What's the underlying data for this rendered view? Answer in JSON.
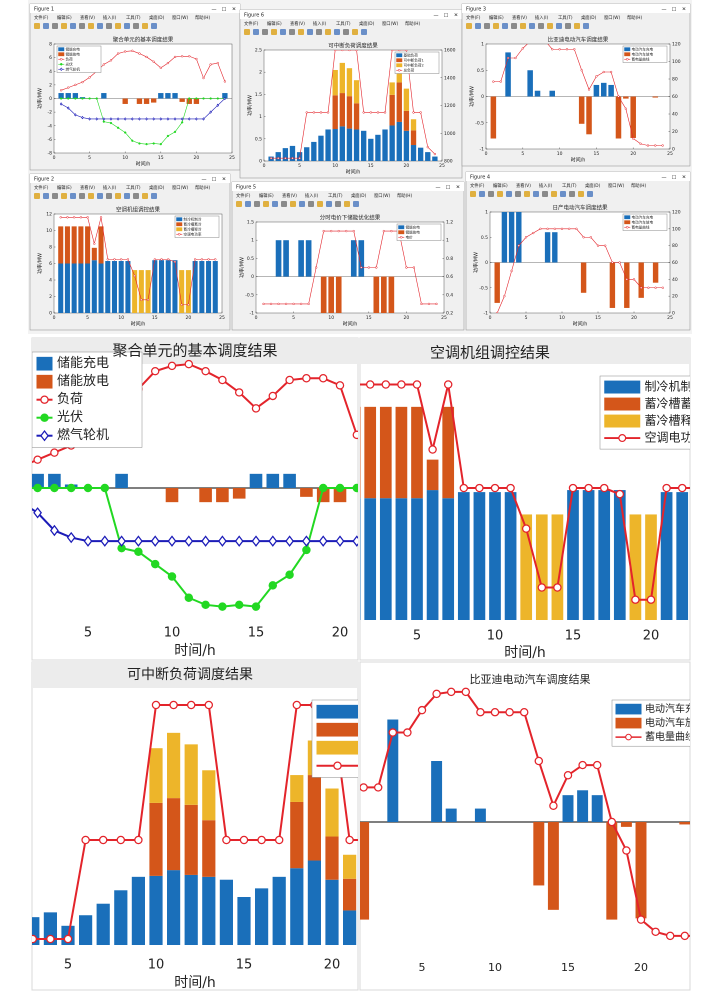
{
  "windows": [
    {
      "title": "Figure 1"
    },
    {
      "title": "Figure 6"
    },
    {
      "title": "Figure 3"
    },
    {
      "title": "Figure 2"
    },
    {
      "title": "Figure 5"
    },
    {
      "title": "Figure 4"
    }
  ],
  "menu": [
    "文件(F)",
    "编辑(E)",
    "查看(V)",
    "插入(I)",
    "工具(T)",
    "桌面(D)",
    "窗口(W)",
    "帮助(H)"
  ],
  "chart_data": [
    {
      "type": "combo",
      "title": "聚合单元的基本调度结果",
      "xlabel": "时间/h",
      "ylabel": "功率/MW",
      "legend": "upper left",
      "x": [
        1,
        2,
        3,
        4,
        5,
        6,
        7,
        8,
        9,
        10,
        11,
        12,
        13,
        14,
        15,
        16,
        17,
        18,
        19,
        20,
        21,
        22,
        23,
        24
      ],
      "xlim": [
        0,
        25
      ],
      "xticks": [
        0,
        5,
        10,
        15,
        20,
        25
      ],
      "ylim": [
        -8,
        8
      ],
      "yticks": [
        -8,
        -6,
        -4,
        -2,
        0,
        2,
        4,
        6,
        8
      ],
      "series": [
        {
          "name": "储能充电",
          "type": "bar",
          "color": "#1a6fba",
          "values": [
            0.8,
            0.8,
            0.8,
            0.2,
            0,
            0,
            0.8,
            0,
            0,
            0,
            0,
            0,
            0,
            0,
            0.8,
            0.8,
            0.8,
            0,
            0,
            0,
            0,
            0,
            0,
            0.8
          ]
        },
        {
          "name": "储能放电",
          "type": "bar",
          "color": "#d4561a",
          "values": [
            0,
            0,
            0,
            0,
            0,
            0,
            0,
            0,
            0,
            -0.8,
            0,
            -0.8,
            -0.8,
            -0.6,
            0,
            0,
            0,
            -0.5,
            -0.8,
            -0.8,
            0,
            0,
            0,
            0
          ]
        },
        {
          "name": "负荷",
          "type": "line",
          "marker": "circle",
          "color": "#e3242b",
          "values": [
            1.2,
            1.6,
            2.0,
            2.4,
            3.1,
            4.0,
            5.0,
            5.6,
            6.6,
            6.9,
            7.0,
            6.6,
            6.1,
            5.4,
            4.5,
            5.2,
            6.1,
            6.2,
            6.2,
            5.8,
            3.0,
            5.0,
            5.2,
            2.5
          ]
        },
        {
          "name": "光伏",
          "type": "line",
          "marker": "dot",
          "color": "#22d822",
          "values": [
            0,
            0,
            0,
            0,
            0,
            0,
            -3.4,
            -3.6,
            -4.3,
            -5.0,
            -6.2,
            -6.6,
            -6.7,
            -6.6,
            -6.7,
            -5.5,
            -4.9,
            -3.5,
            0,
            0,
            0,
            0,
            0,
            0
          ]
        },
        {
          "name": "燃气轮机",
          "type": "line",
          "marker": "diamond",
          "color": "#1c1cb8",
          "values": [
            -0.8,
            -1.4,
            -2.4,
            -2.8,
            -3,
            -3,
            -3,
            -3,
            -3,
            -3,
            -3,
            -3,
            -3,
            -3,
            -3,
            -3,
            -3,
            -3,
            -3,
            -3,
            -3,
            -2,
            -1,
            0
          ]
        }
      ]
    },
    {
      "type": "combo",
      "title": "可中断负荷调度结果",
      "xlabel": "时间/h",
      "ylabel": "功率/MW",
      "legend": "upper right",
      "x": [
        1,
        2,
        3,
        4,
        5,
        6,
        7,
        8,
        9,
        10,
        11,
        12,
        13,
        14,
        15,
        16,
        17,
        18,
        19,
        20,
        21,
        22,
        23,
        24
      ],
      "xlim": [
        0,
        25
      ],
      "xticks": [
        0,
        5,
        10,
        15,
        20,
        25
      ],
      "ylim": [
        0,
        2.5
      ],
      "yticks": [
        0,
        0.5,
        1,
        1.5,
        2,
        2.5
      ],
      "y2lim": [
        800,
        1600
      ],
      "y2ticks": [
        800,
        1000,
        1200,
        1400,
        1600
      ],
      "series": [
        {
          "name": "基础负荷",
          "type": "bar",
          "color": "#1a6fba",
          "values": [
            0.1,
            0.2,
            0.29,
            0.34,
            0.2,
            0.31,
            0.43,
            0.57,
            0.71,
            0.72,
            0.78,
            0.73,
            0.71,
            0.68,
            0.5,
            0.59,
            0.71,
            0.8,
            0.88,
            0.68,
            0.36,
            0.3,
            0.2,
            0.1
          ]
        },
        {
          "name": "可中断负荷1",
          "type": "bar",
          "color": "#d4561a",
          "values": [
            0,
            0,
            0,
            0,
            0,
            0,
            0,
            0,
            0,
            0.76,
            0.75,
            0.73,
            0.59,
            0,
            0,
            0,
            0,
            0.69,
            0.89,
            0.45,
            0.33,
            0,
            0,
            0
          ]
        },
        {
          "name": "可中断负荷2",
          "type": "bar",
          "color": "#edb52a",
          "values": [
            0,
            0,
            0,
            0,
            0,
            0,
            0,
            0,
            0,
            0.57,
            0.68,
            0.63,
            0.52,
            0,
            0,
            0,
            0,
            0.28,
            0.36,
            0.5,
            0.25,
            0,
            0,
            0
          ]
        },
        {
          "name": "总负荷",
          "type": "line",
          "marker": "circle",
          "axis": "y2",
          "color": "#e3242b",
          "values": [
            820,
            820,
            820,
            820,
            820,
            1150,
            1150,
            1150,
            1150,
            1600,
            1600,
            1600,
            1600,
            1150,
            1150,
            1150,
            1150,
            1600,
            1600,
            1600,
            1150,
            1150,
            900,
            850
          ]
        }
      ]
    },
    {
      "type": "combo",
      "title": "比亚迪电动汽车调度结果",
      "xlabel": "时间/h",
      "ylabel": "功率/MW",
      "legend": "upper right",
      "x": [
        1,
        2,
        3,
        4,
        5,
        6,
        7,
        8,
        9,
        10,
        11,
        12,
        13,
        14,
        15,
        16,
        17,
        18,
        19,
        20,
        21,
        22,
        23,
        24
      ],
      "xlim": [
        0,
        25
      ],
      "xticks": [
        0,
        5,
        10,
        15,
        20,
        25
      ],
      "ylim": [
        -1,
        1
      ],
      "yticks": [
        -1,
        -0.5,
        0,
        0.5,
        1
      ],
      "y2lim": [
        0,
        120
      ],
      "y2ticks": [
        0,
        20,
        40,
        60,
        80,
        100,
        120
      ],
      "series": [
        {
          "name": "电动汽车充电",
          "type": "bar",
          "color": "#1a6fba",
          "values": [
            0,
            0,
            0.84,
            0,
            0,
            0.5,
            0.11,
            0,
            0.11,
            0,
            0,
            0,
            0,
            0,
            0.22,
            0.26,
            0.22,
            0,
            0,
            0,
            0,
            0,
            0,
            0
          ]
        },
        {
          "name": "电动汽车放电",
          "type": "bar",
          "color": "#d4561a",
          "values": [
            -0.8,
            0,
            0,
            0,
            0,
            0,
            0,
            0,
            0,
            0,
            0,
            0,
            -0.52,
            -0.72,
            0,
            0,
            0,
            -0.8,
            -0.04,
            -0.79,
            0,
            0,
            -0.02,
            0
          ]
        },
        {
          "name": "蓄电量曲线",
          "type": "line",
          "marker": "circle",
          "axis": "y2",
          "color": "#e3242b",
          "values": [
            77,
            77,
            104,
            104,
            115,
            123,
            124,
            124,
            114,
            114,
            114,
            114,
            90,
            68,
            83,
            88,
            88,
            60,
            46,
            12,
            6,
            4,
            4,
            4
          ]
        }
      ]
    },
    {
      "type": "combo",
      "title": "空调机组调控结果",
      "xlabel": "时间/h",
      "ylabel": "功率/MW",
      "legend": "upper right",
      "x": [
        1,
        2,
        3,
        4,
        5,
        6,
        7,
        8,
        9,
        10,
        11,
        12,
        13,
        14,
        15,
        16,
        17,
        18,
        19,
        20,
        21,
        22,
        23,
        24
      ],
      "xlim": [
        0,
        25
      ],
      "xticks": [
        0,
        5,
        10,
        15,
        20,
        25
      ],
      "ylim": [
        0,
        12
      ],
      "yticks": [
        0,
        2,
        4,
        6,
        8,
        10,
        12
      ],
      "series": [
        {
          "name": "制冷机制冷",
          "type": "bar",
          "color": "#1a6fba",
          "values": [
            6,
            6,
            6,
            6,
            6,
            6.4,
            6,
            6.3,
            6.3,
            6.3,
            6.3,
            0,
            0,
            0,
            6.4,
            6.4,
            6.4,
            6.4,
            0,
            0,
            6.3,
            6.3,
            6.3,
            6.3
          ]
        },
        {
          "name": "蓄冷槽蓄冷",
          "type": "bar",
          "color": "#d4561a",
          "values": [
            4.5,
            4.5,
            4.5,
            4.5,
            4.5,
            1.5,
            4.5,
            0,
            0,
            0,
            0,
            0,
            0,
            0,
            0,
            0,
            0,
            0,
            0,
            0,
            0,
            0,
            0,
            0
          ]
        },
        {
          "name": "蓄冷槽释冷",
          "type": "bar",
          "color": "#edb52a",
          "values": [
            0,
            0,
            0,
            0,
            0,
            0,
            0,
            0,
            0,
            0,
            0,
            5.2,
            5.2,
            5.2,
            0,
            0,
            0,
            0,
            5.2,
            5.2,
            0,
            0,
            0,
            0
          ]
        },
        {
          "name": "空调电功率",
          "type": "line",
          "marker": "circle",
          "color": "#e3242b",
          "values": [
            11.6,
            11.6,
            11.6,
            11.6,
            11.6,
            8.4,
            11.6,
            6.5,
            6.5,
            6.5,
            6.5,
            4.5,
            1.6,
            1.6,
            6.5,
            6.5,
            6.5,
            6.2,
            1.0,
            1.0,
            6.5,
            6.5,
            6.5,
            6.5
          ]
        }
      ]
    },
    {
      "type": "combo",
      "title": "分时电价下储能优化结果",
      "xlabel": "时间/h",
      "ylabel": "功率/MW",
      "legend": "upper right",
      "x": [
        1,
        2,
        3,
        4,
        5,
        6,
        7,
        8,
        9,
        10,
        11,
        12,
        13,
        14,
        15,
        16,
        17,
        18,
        19,
        20,
        21,
        22,
        23,
        24
      ],
      "xlim": [
        0,
        25
      ],
      "xticks": [
        0,
        5,
        10,
        15,
        20,
        25
      ],
      "ylim": [
        -1,
        1.5
      ],
      "yticks": [
        -1,
        -0.5,
        0,
        0.5,
        1,
        1.5
      ],
      "y2lim": [
        0.2,
        1.2
      ],
      "y2ticks": [
        0.2,
        0.4,
        0.6,
        0.8,
        1,
        1.2
      ],
      "series": [
        {
          "name": "储能充电",
          "type": "bar",
          "color": "#1a6fba",
          "values": [
            0,
            0,
            1,
            1,
            0,
            1,
            1,
            0,
            0,
            0,
            0,
            0,
            1,
            1,
            0,
            0,
            0,
            0,
            0,
            0,
            0,
            0,
            0,
            0
          ]
        },
        {
          "name": "储能放电",
          "type": "bar",
          "color": "#d4561a",
          "values": [
            0,
            0,
            0,
            0,
            0,
            0,
            0,
            0,
            -1,
            -1,
            -1,
            0,
            0,
            0,
            0,
            -1,
            -1,
            -1,
            0,
            0,
            0,
            0,
            0,
            0
          ]
        },
        {
          "name": "电价",
          "type": "line",
          "marker": "circle",
          "axis": "y2",
          "color": "#e3242b",
          "values": [
            0.3,
            0.3,
            0.3,
            0.3,
            0.3,
            0.3,
            0.3,
            0.7,
            1.1,
            1.1,
            1.1,
            1.1,
            1.1,
            0.7,
            0.7,
            0.7,
            1.1,
            1.1,
            1.1,
            0.7,
            0.7,
            0.3,
            0.3,
            0.3
          ]
        }
      ]
    },
    {
      "type": "combo",
      "title": "日产电动汽车调度结果",
      "xlabel": "时间/h",
      "ylabel": "功率/MW",
      "legend": "upper right",
      "x": [
        1,
        2,
        3,
        4,
        5,
        6,
        7,
        8,
        9,
        10,
        11,
        12,
        13,
        14,
        15,
        16,
        17,
        18,
        19,
        20,
        21,
        22,
        23,
        24
      ],
      "xlim": [
        0,
        25
      ],
      "xticks": [
        0,
        5,
        10,
        15,
        20,
        25
      ],
      "ylim": [
        -1,
        1
      ],
      "yticks": [
        -1,
        -0.5,
        0,
        0.5,
        1
      ],
      "y2lim": [
        0,
        120
      ],
      "y2ticks": [
        0,
        20,
        40,
        60,
        80,
        100,
        120
      ],
      "series": [
        {
          "name": "电动汽车充电",
          "type": "bar",
          "color": "#1a6fba",
          "values": [
            0,
            1,
            1,
            1,
            0,
            0,
            0,
            0.6,
            0.6,
            0,
            0,
            0,
            0,
            0,
            0,
            0,
            0,
            0,
            0,
            0,
            0,
            0,
            0,
            0
          ]
        },
        {
          "name": "电动汽车放电",
          "type": "bar",
          "color": "#d4561a",
          "values": [
            -0.8,
            0,
            0,
            0,
            0,
            0,
            0,
            0,
            0,
            0,
            0,
            0,
            -0.6,
            0,
            0,
            0,
            -0.9,
            0,
            -0.9,
            0,
            -0.7,
            0,
            -0.4,
            0
          ]
        },
        {
          "name": "蓄电量曲线",
          "type": "line",
          "marker": "circle",
          "axis": "y2",
          "color": "#e3242b",
          "values": [
            0,
            20,
            50,
            80,
            90,
            95,
            100,
            100,
            100,
            100,
            100,
            100,
            90,
            90,
            80,
            80,
            60,
            60,
            40,
            40,
            30,
            30,
            30,
            30
          ]
        }
      ]
    }
  ]
}
